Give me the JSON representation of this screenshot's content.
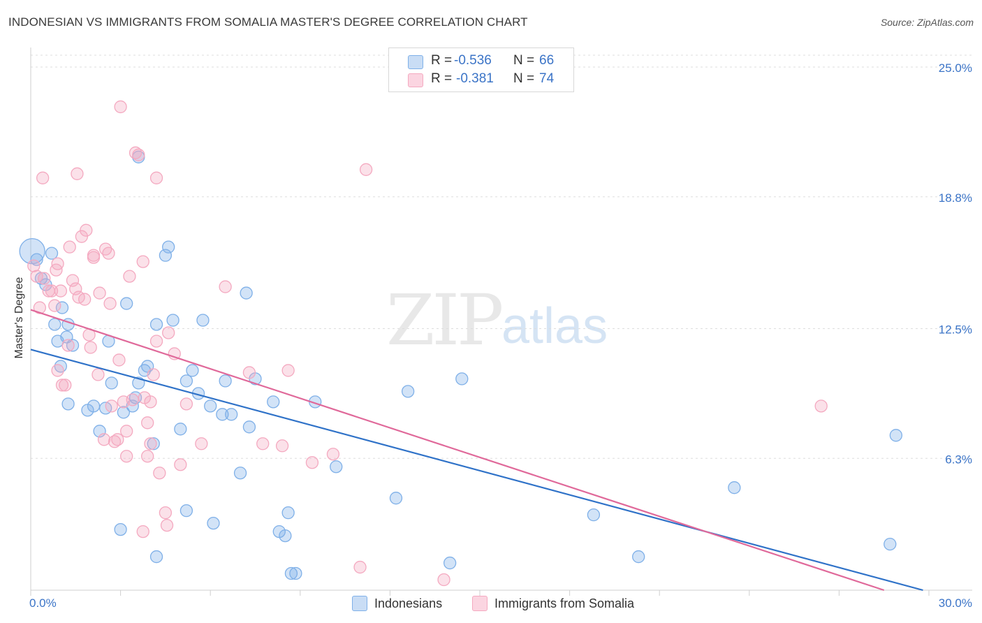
{
  "header": {
    "title": "INDONESIAN VS IMMIGRANTS FROM SOMALIA MASTER'S DEGREE CORRELATION CHART",
    "source": "Source: ZipAtlas.com"
  },
  "watermark": {
    "zip": "ZIP",
    "atlas": "atlas"
  },
  "legend_box": {
    "rows": [
      {
        "r_label": "R =",
        "r_value": "-0.536",
        "n_label": "N =",
        "n_value": "66",
        "color": "#a8c8ee"
      },
      {
        "r_label": "R =",
        "r_value": "-0.381",
        "n_label": "N =",
        "n_value": "74",
        "color": "#f4b8ca"
      }
    ]
  },
  "bottom_legend": {
    "items": [
      {
        "label": "Indonesians",
        "color": "#a8c8ee"
      },
      {
        "label": "Immigrants from Somalia",
        "color": "#f4b8ca"
      }
    ]
  },
  "chart_data": {
    "type": "scatter",
    "title": "INDONESIAN VS IMMIGRANTS FROM SOMALIA MASTER'S DEGREE CORRELATION CHART",
    "xlabel": "",
    "ylabel": "Master's Degree",
    "xlim": [
      0,
      30
    ],
    "ylim": [
      0,
      25
    ],
    "x_tick_labels": [
      "0.0%",
      "30.0%"
    ],
    "y_ticks": [
      6.3,
      12.5,
      18.8,
      25.0
    ],
    "y_tick_labels": [
      "6.3%",
      "12.5%",
      "18.8%",
      "25.0%"
    ],
    "grid": true,
    "series": [
      {
        "name": "Indonesians",
        "color": "#7fb0e8",
        "line_color": "#2f72c8",
        "trend": {
          "x": [
            0,
            29.8
          ],
          "y": [
            11.5,
            0.0
          ]
        },
        "points": [
          [
            0.05,
            16.2
          ],
          [
            0.2,
            15.8
          ],
          [
            0.35,
            14.9
          ],
          [
            0.5,
            14.6
          ],
          [
            0.7,
            16.1
          ],
          [
            1.05,
            13.5
          ],
          [
            0.8,
            12.7
          ],
          [
            0.9,
            11.9
          ],
          [
            1.2,
            12.1
          ],
          [
            1.25,
            12.7
          ],
          [
            1.4,
            11.7
          ],
          [
            1.0,
            10.7
          ],
          [
            1.25,
            8.9
          ],
          [
            1.9,
            8.6
          ],
          [
            2.1,
            8.8
          ],
          [
            2.3,
            7.6
          ],
          [
            2.5,
            8.7
          ],
          [
            2.6,
            11.9
          ],
          [
            2.7,
            9.9
          ],
          [
            3.1,
            8.5
          ],
          [
            3.2,
            13.7
          ],
          [
            3.4,
            8.8
          ],
          [
            3.5,
            9.2
          ],
          [
            3.6,
            9.9
          ],
          [
            3.8,
            10.5
          ],
          [
            3.9,
            10.7
          ],
          [
            4.1,
            7.0
          ],
          [
            4.2,
            12.7
          ],
          [
            4.5,
            16.0
          ],
          [
            4.6,
            16.4
          ],
          [
            4.75,
            12.9
          ],
          [
            5.0,
            7.7
          ],
          [
            5.2,
            10.0
          ],
          [
            5.4,
            10.5
          ],
          [
            5.6,
            9.4
          ],
          [
            5.75,
            12.9
          ],
          [
            6.0,
            8.8
          ],
          [
            6.4,
            8.4
          ],
          [
            6.5,
            10.0
          ],
          [
            6.7,
            8.4
          ],
          [
            7.0,
            5.6
          ],
          [
            7.2,
            14.2
          ],
          [
            7.3,
            7.8
          ],
          [
            7.5,
            10.1
          ],
          [
            8.1,
            9.0
          ],
          [
            8.3,
            2.8
          ],
          [
            8.5,
            2.6
          ],
          [
            8.6,
            3.7
          ],
          [
            8.7,
            0.8
          ],
          [
            8.85,
            0.8
          ],
          [
            9.5,
            9.0
          ],
          [
            10.2,
            5.9
          ],
          [
            3.6,
            20.7
          ],
          [
            3.0,
            2.9
          ],
          [
            4.2,
            1.6
          ],
          [
            5.2,
            3.8
          ],
          [
            6.1,
            3.2
          ],
          [
            12.2,
            4.4
          ],
          [
            12.6,
            9.5
          ],
          [
            14.0,
            1.3
          ],
          [
            14.4,
            10.1
          ],
          [
            18.8,
            3.6
          ],
          [
            20.3,
            1.6
          ],
          [
            23.5,
            4.9
          ],
          [
            28.9,
            7.4
          ],
          [
            28.7,
            2.2
          ]
        ]
      },
      {
        "name": "Immigrants from Somalia",
        "color": "#f4a9c0",
        "line_color": "#e0699a",
        "trend": {
          "x": [
            0,
            28.5
          ],
          "y": [
            13.4,
            0.0
          ]
        },
        "points": [
          [
            0.1,
            15.5
          ],
          [
            0.2,
            15.0
          ],
          [
            0.3,
            13.5
          ],
          [
            0.45,
            14.9
          ],
          [
            0.6,
            14.3
          ],
          [
            0.7,
            14.3
          ],
          [
            0.8,
            13.6
          ],
          [
            0.85,
            15.3
          ],
          [
            0.9,
            15.6
          ],
          [
            1.0,
            14.3
          ],
          [
            0.9,
            10.5
          ],
          [
            1.05,
            9.8
          ],
          [
            1.15,
            9.8
          ],
          [
            1.25,
            11.7
          ],
          [
            1.3,
            16.4
          ],
          [
            1.4,
            14.8
          ],
          [
            1.5,
            14.4
          ],
          [
            1.6,
            14.0
          ],
          [
            1.7,
            16.9
          ],
          [
            1.8,
            13.9
          ],
          [
            1.85,
            17.2
          ],
          [
            1.95,
            12.2
          ],
          [
            2.0,
            11.6
          ],
          [
            2.1,
            16.0
          ],
          [
            2.25,
            10.3
          ],
          [
            2.3,
            14.2
          ],
          [
            2.45,
            7.2
          ],
          [
            2.5,
            16.3
          ],
          [
            2.6,
            16.1
          ],
          [
            2.65,
            13.7
          ],
          [
            2.7,
            8.8
          ],
          [
            2.8,
            7.1
          ],
          [
            2.9,
            7.2
          ],
          [
            2.95,
            11.0
          ],
          [
            3.1,
            9.0
          ],
          [
            3.2,
            7.6
          ],
          [
            3.3,
            15.0
          ],
          [
            3.4,
            9.1
          ],
          [
            3.5,
            20.9
          ],
          [
            3.6,
            20.8
          ],
          [
            3.75,
            15.7
          ],
          [
            3.8,
            9.2
          ],
          [
            3.9,
            8.0
          ],
          [
            4.0,
            9.0
          ],
          [
            4.1,
            10.3
          ],
          [
            4.2,
            11.9
          ],
          [
            4.3,
            5.6
          ],
          [
            4.5,
            3.7
          ],
          [
            4.55,
            3.1
          ],
          [
            4.6,
            12.3
          ],
          [
            4.8,
            11.3
          ],
          [
            5.0,
            6.0
          ],
          [
            5.2,
            8.9
          ],
          [
            5.7,
            7.0
          ],
          [
            6.5,
            14.5
          ],
          [
            7.3,
            10.4
          ],
          [
            7.75,
            7.0
          ],
          [
            8.4,
            6.9
          ],
          [
            8.6,
            10.5
          ],
          [
            9.4,
            6.1
          ],
          [
            10.1,
            6.5
          ],
          [
            11.0,
            1.1
          ],
          [
            11.2,
            20.1
          ],
          [
            1.55,
            19.9
          ],
          [
            0.4,
            19.7
          ],
          [
            3.0,
            23.1
          ],
          [
            4.2,
            19.7
          ],
          [
            3.2,
            6.4
          ],
          [
            3.75,
            2.8
          ],
          [
            3.9,
            6.4
          ],
          [
            4.0,
            7.0
          ],
          [
            2.1,
            15.9
          ],
          [
            26.4,
            8.8
          ],
          [
            13.8,
            0.5
          ]
        ]
      }
    ]
  }
}
